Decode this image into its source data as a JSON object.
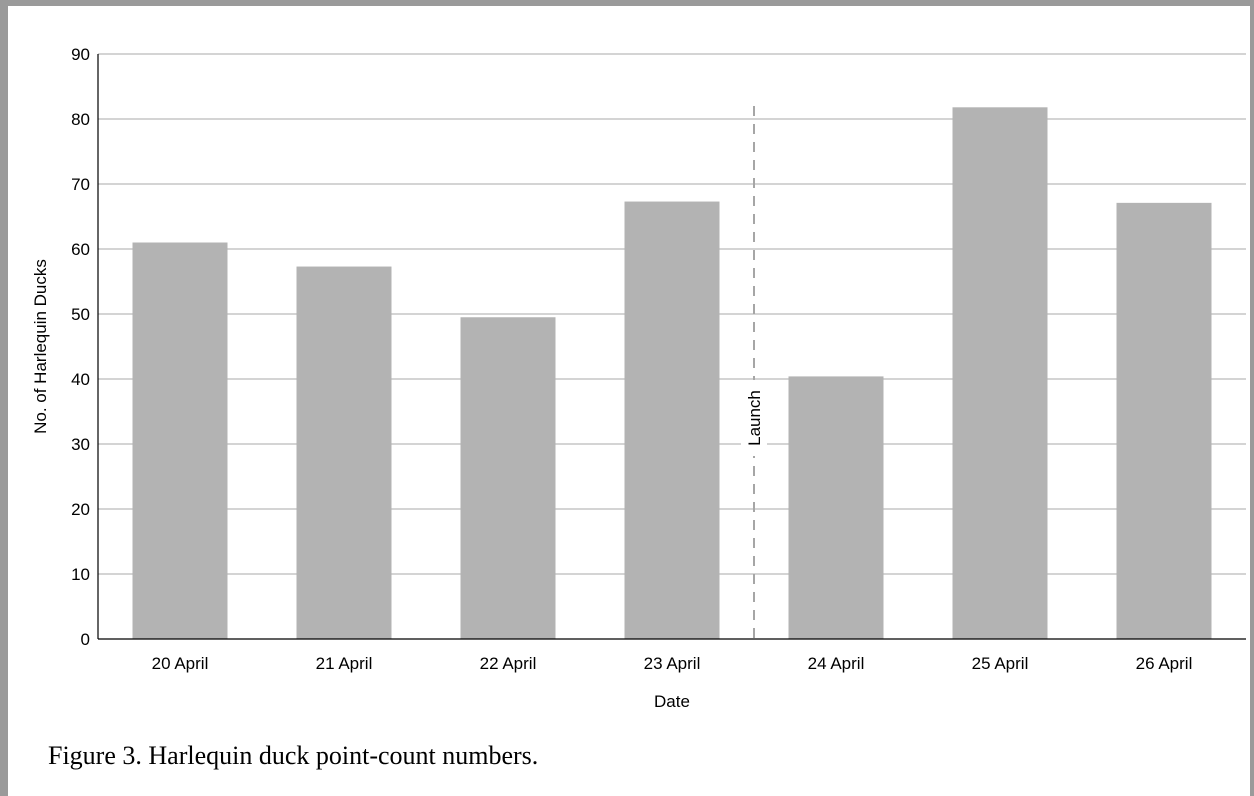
{
  "caption": "Figure 3.  Harlequin duck point-count numbers.",
  "chart_data": {
    "type": "bar",
    "categories": [
      "20  April",
      "21  April",
      "22  April",
      "23  April",
      "24  April",
      "25  April",
      "26  April"
    ],
    "values": [
      61,
      57.3,
      49.5,
      67.3,
      40.4,
      81.8,
      67.1
    ],
    "xlabel": "Date",
    "ylabel": "No. of Harlequin Ducks",
    "ylim": [
      0,
      90
    ],
    "yticks": [
      0,
      10,
      20,
      30,
      40,
      50,
      60,
      70,
      80,
      90
    ],
    "grid": true,
    "bar_color": "#b3b3b3",
    "annotation": {
      "label": "Launch",
      "between_categories": [
        "23  April",
        "24  April"
      ],
      "style": "dashed-vertical-line",
      "color": "#a6a6a6"
    }
  }
}
